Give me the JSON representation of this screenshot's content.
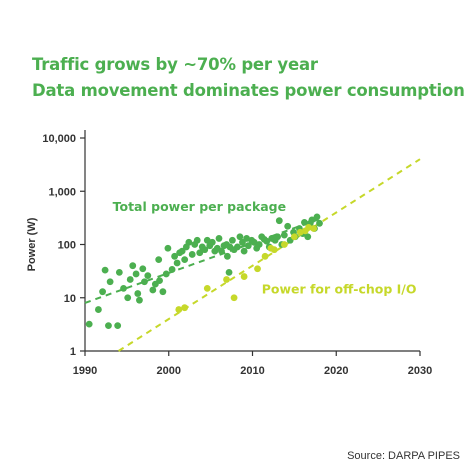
{
  "header": {
    "line1": "Traffic grows by ~70% per year",
    "line2": "Data movement dominates power consumption"
  },
  "footer": {
    "source": "Source: DARPA PIPES"
  },
  "colors": {
    "title": "#4caf50",
    "series_total": "#4caf50",
    "series_io": "#c6d82a",
    "axis": "#333333"
  },
  "chart_data": {
    "type": "scatter",
    "title": "",
    "xlabel": "",
    "ylabel": "Power (W)",
    "xlim": [
      1990,
      2030
    ],
    "ylim": [
      1,
      10000
    ],
    "y_scale": "log",
    "grid": false,
    "x_ticks": [
      1990,
      2000,
      2010,
      2020,
      2030
    ],
    "y_ticks": [
      {
        "value": 1,
        "label": "1"
      },
      {
        "value": 10,
        "label": "10"
      },
      {
        "value": 100,
        "label": "100"
      },
      {
        "value": 1000,
        "label": "1,000"
      },
      {
        "value": 10000,
        "label": "10,000"
      }
    ],
    "series": [
      {
        "name": "Total power per package",
        "color": "#4caf50",
        "points": [
          [
            1990.5,
            3.2
          ],
          [
            1991.6,
            6
          ],
          [
            1992.1,
            13
          ],
          [
            1992.4,
            33
          ],
          [
            1992.8,
            3
          ],
          [
            1993.0,
            20
          ],
          [
            1993.9,
            3
          ],
          [
            1994.1,
            30
          ],
          [
            1994.6,
            15
          ],
          [
            1995.1,
            10
          ],
          [
            1995.4,
            22
          ],
          [
            1995.7,
            40
          ],
          [
            1996.1,
            28
          ],
          [
            1996.3,
            12
          ],
          [
            1996.5,
            9
          ],
          [
            1996.9,
            35
          ],
          [
            1997.1,
            20
          ],
          [
            1997.5,
            26
          ],
          [
            1998.1,
            14
          ],
          [
            1998.4,
            18
          ],
          [
            1998.8,
            52
          ],
          [
            1998.9,
            21
          ],
          [
            1999.3,
            13
          ],
          [
            1999.7,
            28
          ],
          [
            1999.9,
            85
          ],
          [
            2000.4,
            34
          ],
          [
            2000.7,
            60
          ],
          [
            2001.0,
            45
          ],
          [
            2001.3,
            70
          ],
          [
            2001.6,
            75
          ],
          [
            2001.9,
            52
          ],
          [
            2002.1,
            90
          ],
          [
            2002.4,
            110
          ],
          [
            2002.8,
            65
          ],
          [
            2003.1,
            100
          ],
          [
            2003.4,
            120
          ],
          [
            2003.7,
            70
          ],
          [
            2004.0,
            90
          ],
          [
            2004.3,
            80
          ],
          [
            2004.6,
            120
          ],
          [
            2004.9,
            95
          ],
          [
            2005.2,
            110
          ],
          [
            2005.5,
            75
          ],
          [
            2005.8,
            85
          ],
          [
            2006.0,
            130
          ],
          [
            2006.3,
            75
          ],
          [
            2006.6,
            95
          ],
          [
            2006.9,
            100
          ],
          [
            2007.0,
            60
          ],
          [
            2007.2,
            30
          ],
          [
            2007.3,
            90
          ],
          [
            2007.6,
            120
          ],
          [
            2007.8,
            80
          ],
          [
            2008.2,
            90
          ],
          [
            2008.5,
            140
          ],
          [
            2008.8,
            110
          ],
          [
            2009.0,
            75
          ],
          [
            2009.3,
            130
          ],
          [
            2009.5,
            95
          ],
          [
            2009.9,
            120
          ],
          [
            2010.2,
            110
          ],
          [
            2010.5,
            85
          ],
          [
            2010.8,
            100
          ],
          [
            2011.1,
            140
          ],
          [
            2011.4,
            125
          ],
          [
            2011.7,
            115
          ],
          [
            2012.0,
            90
          ],
          [
            2012.3,
            130
          ],
          [
            2012.7,
            120
          ],
          [
            2013.0,
            140
          ],
          [
            2013.2,
            280
          ],
          [
            2013.5,
            100
          ],
          [
            2013.8,
            150
          ],
          [
            2014.2,
            220
          ],
          [
            2014.5,
            120
          ],
          [
            2014.9,
            170
          ],
          [
            2015.1,
            140
          ],
          [
            2015.6,
            200
          ],
          [
            2016.0,
            160
          ],
          [
            2016.2,
            260
          ],
          [
            2016.6,
            140
          ],
          [
            2016.9,
            250
          ],
          [
            2017.1,
            290
          ],
          [
            2017.4,
            200
          ],
          [
            2017.7,
            330
          ],
          [
            2018.0,
            250
          ]
        ]
      },
      {
        "name": "Power for off-chop I/O",
        "color": "#c6d82a",
        "points": [
          [
            2001.2,
            6
          ],
          [
            2001.9,
            6.5
          ],
          [
            2004.6,
            15
          ],
          [
            2006.9,
            22
          ],
          [
            2007.8,
            10
          ],
          [
            2009.0,
            25
          ],
          [
            2010.6,
            35
          ],
          [
            2011.5,
            60
          ],
          [
            2012.2,
            85
          ],
          [
            2012.6,
            80
          ],
          [
            2013.8,
            100
          ],
          [
            2015.0,
            140
          ],
          [
            2015.7,
            170
          ],
          [
            2016.3,
            180
          ],
          [
            2016.7,
            210
          ],
          [
            2017.3,
            200
          ]
        ]
      }
    ],
    "trend_lines": [
      {
        "series": "Total power per package",
        "from": [
          1990,
          8
        ],
        "to": [
          2018,
          300
        ]
      },
      {
        "series": "Power for off-chop I/O",
        "from": [
          1994,
          1
        ],
        "to": [
          2030,
          4000
        ]
      }
    ],
    "annotations": [
      {
        "text": "Total power per package",
        "x": 1993.3,
        "y": 430,
        "color": "#4caf50"
      },
      {
        "text": "Power for off-chop I/O",
        "x": 2011.1,
        "y": 12,
        "color": "#c6d82a"
      }
    ]
  }
}
